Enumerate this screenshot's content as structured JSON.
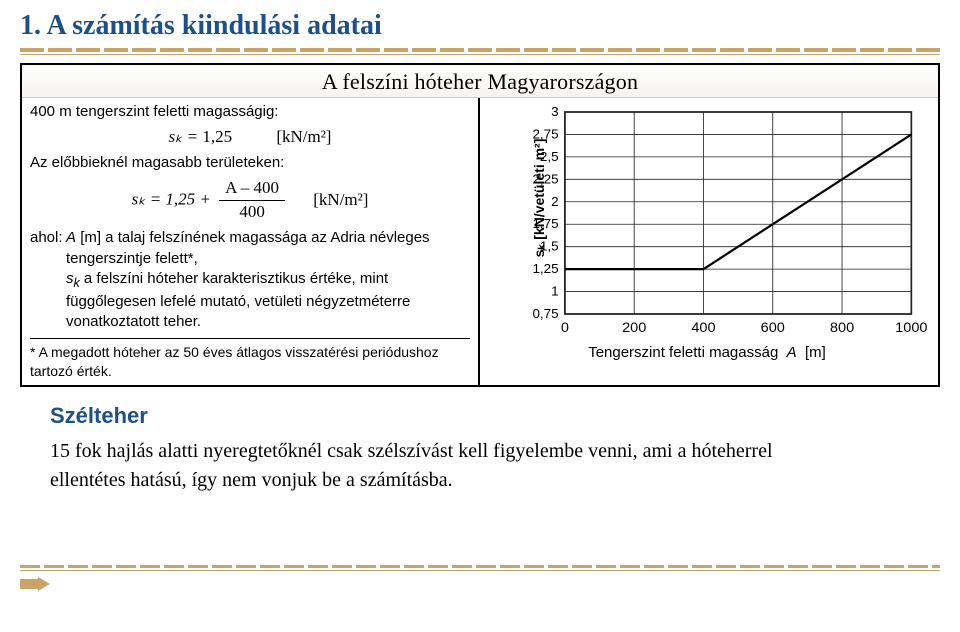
{
  "heading": "1. A számítás kiindulási adatai",
  "panel": {
    "title": "A felszíni hóteher Magyarországon",
    "line1": "400 m tengerszint feletti magasságig:",
    "eq1_lhs": "sₖ =",
    "eq1_rhs": "1,25",
    "eq1_unit": "[kN/m²]",
    "line2": "Az előbbieknél magasabb területeken:",
    "eq2_lhs": "sₖ = 1,25 +",
    "eq2_top": "A – 400",
    "eq2_bot": "400",
    "eq2_unit": "[kN/m²]",
    "ahol": "ahol:",
    "defA": "A [m] a talaj felszínének magassága az  Adria névleges tengerszintje felett*,",
    "defSk": "sₖ  a felszíni hóteher karakterisztikus értéke, mint függőlegesen lefelé mutató, vetületi négyzetméterre vonatkoztatott teher.",
    "footnote": "* A megadott hóteher az 50 éves átlagos visszatérési periódushoz tartozó érték."
  },
  "chart": {
    "y_label": "sₖ  [kN/vetületi m²]",
    "x_label": "Tengerszint feletti magasság  A  [m]",
    "y_ticks": [
      "3",
      "2,75",
      "2,5",
      "2,25",
      "2",
      "1,75",
      "1,5",
      "1,25",
      "1",
      "0,75"
    ],
    "x_ticks": [
      "0",
      "200",
      "400",
      "600",
      "800",
      "1000"
    ],
    "line": {
      "x1": 0,
      "y1": 1.25,
      "xmid": 400,
      "x2": 1000,
      "y2": 2.75
    },
    "xlim": [
      0,
      1000
    ],
    "ylim": [
      0.75,
      3.0
    ],
    "grid_color": "#222222",
    "line_color": "#000000",
    "bg": "#ffffff",
    "line_width": 2.2
  },
  "subhead": "Szélteher",
  "body": "15 fok hajlás alatti nyeregtetőknél csak szélszívást kell figyelembe venni, ami a hóteherrel ellentétes hatású, így nem vonjuk be a számításba."
}
